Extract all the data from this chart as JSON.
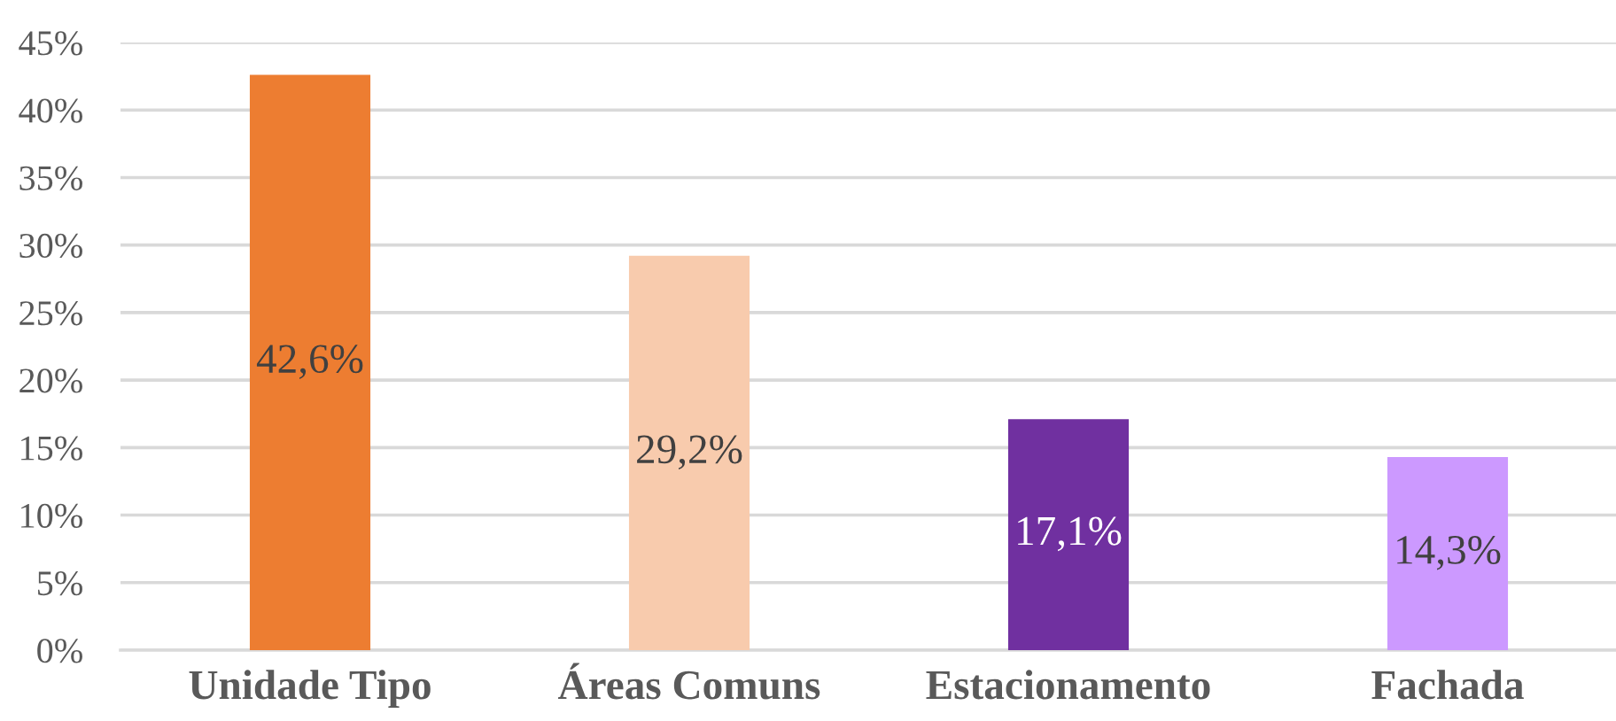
{
  "chart_data": {
    "type": "bar",
    "categories": [
      "Unidade Tipo",
      "Áreas Comuns",
      "Estacionamento",
      "Fachada"
    ],
    "values": [
      42.6,
      29.2,
      17.1,
      14.3
    ],
    "colors": [
      "#ed7d31",
      "#f8cbad",
      "#7030a0",
      "#cc99ff"
    ],
    "value_labels": [
      "42,6%",
      "29,2%",
      "17,1%",
      "14,3%"
    ],
    "ylim": [
      0,
      45
    ],
    "yticks": [
      {
        "value": 0,
        "label": "0%"
      },
      {
        "value": 5,
        "label": "5%"
      },
      {
        "value": 10,
        "label": "10%"
      },
      {
        "value": 15,
        "label": "15%"
      },
      {
        "value": 20,
        "label": "20%"
      },
      {
        "value": 25,
        "label": "25%"
      },
      {
        "value": 30,
        "label": "30%"
      },
      {
        "value": 35,
        "label": "35%"
      },
      {
        "value": 40,
        "label": "40%"
      },
      {
        "value": 45,
        "label": "45%"
      }
    ],
    "grid": "y"
  }
}
